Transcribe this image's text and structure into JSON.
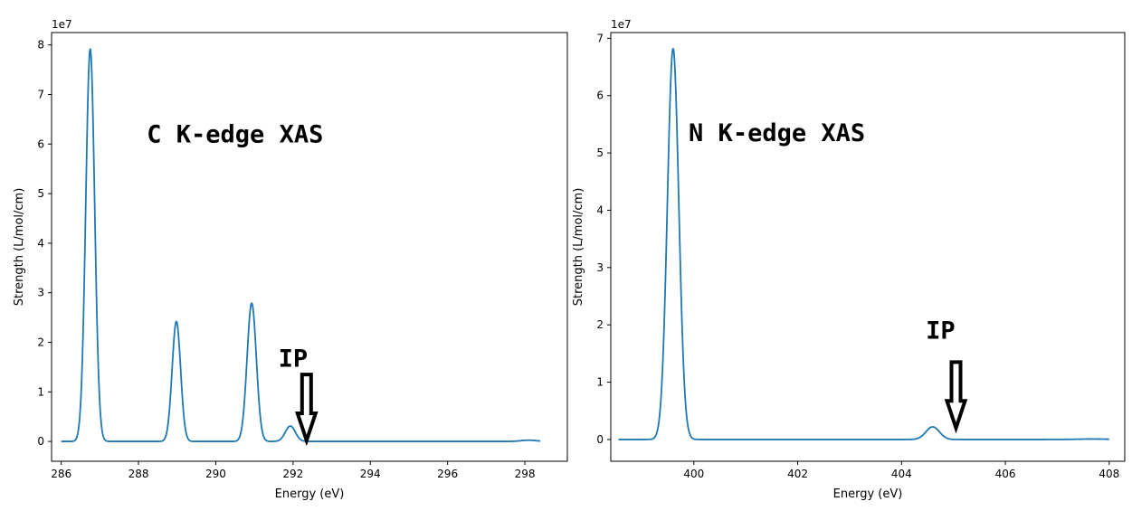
{
  "colors": {
    "line": "#1f77b4"
  },
  "chart_data": [
    {
      "type": "line",
      "title": "",
      "xlabel": "Energy (eV)",
      "ylabel": "Strength (L/mol/cm)",
      "offset_label": "1e7",
      "xlim": [
        285.75,
        299.1
      ],
      "ylim": [
        -0.4,
        8.25
      ],
      "xticks": [
        286,
        288,
        290,
        292,
        294,
        296,
        298
      ],
      "yticks": [
        0,
        1,
        2,
        3,
        4,
        5,
        6,
        7,
        8
      ],
      "x_range": [
        286.0,
        298.4
      ],
      "peaks": [
        {
          "center": 286.75,
          "height": 7.92,
          "width": 0.115
        },
        {
          "center": 288.98,
          "height": 2.42,
          "width": 0.11
        },
        {
          "center": 290.93,
          "height": 2.79,
          "width": 0.12
        },
        {
          "center": 291.93,
          "height": 0.31,
          "width": 0.13
        },
        {
          "center": 298.1,
          "height": 0.025,
          "width": 0.2
        }
      ],
      "annotations": [
        {
          "text": "C K-edge XAS",
          "x": 290.5,
          "y": 6.2
        },
        {
          "text": "IP",
          "x": 292.0,
          "y": 1.67,
          "arrow_x": 292.35,
          "arrow_from": 1.35,
          "arrow_to": 0.02
        }
      ]
    },
    {
      "type": "line",
      "title": "",
      "xlabel": "Energy (eV)",
      "ylabel": "Strength (L/mol/cm)",
      "offset_label": "1e7",
      "xlim": [
        398.4,
        408.3
      ],
      "ylim": [
        -0.38,
        7.1
      ],
      "xticks": [
        400,
        402,
        404,
        406,
        408
      ],
      "yticks": [
        0,
        1,
        2,
        3,
        4,
        5,
        6,
        7
      ],
      "x_range": [
        398.55,
        408.0
      ],
      "peaks": [
        {
          "center": 399.6,
          "height": 6.82,
          "width": 0.11
        },
        {
          "center": 404.6,
          "height": 0.22,
          "width": 0.13
        },
        {
          "center": 407.7,
          "height": 0.008,
          "width": 0.3
        }
      ],
      "annotations": [
        {
          "text": "N K-edge XAS",
          "x": 401.6,
          "y": 5.35
        },
        {
          "text": "IP",
          "x": 404.75,
          "y": 1.9,
          "arrow_x": 405.05,
          "arrow_from": 1.35,
          "arrow_to": 0.2
        }
      ]
    }
  ]
}
